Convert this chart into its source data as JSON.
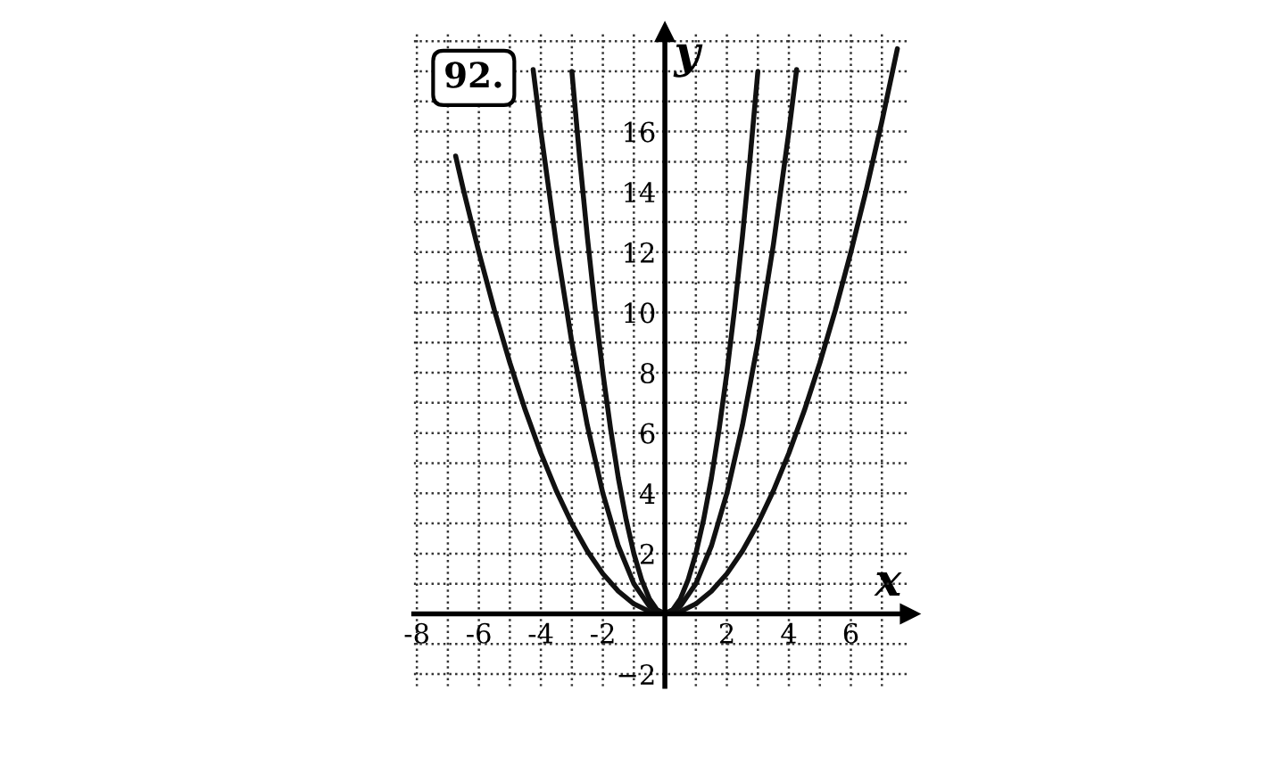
{
  "chart_data": {
    "type": "line",
    "title": "92.",
    "xlabel": "x",
    "ylabel": "y",
    "series": [
      {
        "color": "#111111",
        "x": [
          -6.75,
          -6.5,
          -6,
          -5.5,
          -5,
          -4.5,
          -4,
          -3.5,
          -3,
          -2.5,
          -2,
          -1.5,
          -1,
          -0.5,
          0,
          0.5,
          1,
          1.5,
          2,
          2.5,
          3,
          3.5,
          4,
          4.5,
          5,
          5.5,
          6,
          6.5,
          7,
          7.5
        ],
        "values": [
          15.19,
          14.08,
          12,
          10.08,
          8.33,
          6.75,
          5.33,
          4.08,
          3,
          2.08,
          1.33,
          0.75,
          0.33,
          0.08,
          0,
          0.08,
          0.33,
          0.75,
          1.33,
          2.08,
          3,
          4.08,
          5.33,
          6.75,
          8.33,
          10.08,
          12,
          14.08,
          16.33,
          18.75
        ]
      },
      {
        "color": "#111111",
        "x": [
          -4.25,
          -4,
          -3.5,
          -3,
          -2.5,
          -2,
          -1.5,
          -1,
          -0.5,
          0,
          0.5,
          1,
          1.5,
          2,
          2.5,
          3,
          3.5,
          4,
          4.25
        ],
        "values": [
          18.06,
          16,
          12.25,
          9,
          6.25,
          4,
          2.25,
          1,
          0.25,
          0,
          0.25,
          1,
          2.25,
          4,
          6.25,
          9,
          12.25,
          16,
          18.06
        ]
      },
      {
        "color": "#111111",
        "x": [
          -3,
          -2.75,
          -2.5,
          -2.25,
          -2,
          -1.75,
          -1.5,
          -1.25,
          -1,
          -0.75,
          -0.5,
          -0.25,
          0,
          0.25,
          0.5,
          0.75,
          1,
          1.25,
          1.5,
          1.75,
          2,
          2.25,
          2.5,
          2.75,
          3
        ],
        "values": [
          18,
          15.13,
          12.5,
          10.13,
          8,
          6.13,
          4.5,
          3.13,
          2,
          1.13,
          0.5,
          0.13,
          0,
          0.13,
          0.5,
          1.13,
          2,
          3.13,
          4.5,
          6.13,
          8,
          10.13,
          12.5,
          15.13,
          18
        ]
      }
    ],
    "xlim": [
      -8.1,
      7.9
    ],
    "ylim": [
      -2.4,
      19.3
    ],
    "xticks": [
      -8,
      {
        "value": -7,
        "label": null
      },
      -6,
      {
        "value": -5,
        "label": null
      },
      -4,
      {
        "value": -3,
        "label": null
      },
      -2,
      {
        "value": -1,
        "label": null
      },
      {
        "value": 1,
        "label": null
      },
      2,
      {
        "value": 3,
        "label": null
      },
      4,
      {
        "value": 5,
        "label": null
      },
      6,
      {
        "value": 7,
        "label": null
      }
    ],
    "yticks": [
      {
        "value": -2,
        "label": "−2"
      },
      {
        "value": -1,
        "label": null
      },
      {
        "value": 1,
        "label": null
      },
      2,
      {
        "value": 3,
        "label": null
      },
      4,
      {
        "value": 5,
        "label": null
      },
      6,
      {
        "value": 7,
        "label": null
      },
      8,
      {
        "value": 9,
        "label": null
      },
      10,
      {
        "value": 11,
        "label": null
      },
      12,
      {
        "value": 13,
        "label": null
      },
      14,
      {
        "value": 15,
        "label": null
      },
      16,
      {
        "value": 17,
        "label": null
      },
      {
        "value": 18,
        "label": null
      },
      {
        "value": 19,
        "label": null
      }
    ],
    "grid": true,
    "line_style": "solid",
    "marker": "none"
  }
}
